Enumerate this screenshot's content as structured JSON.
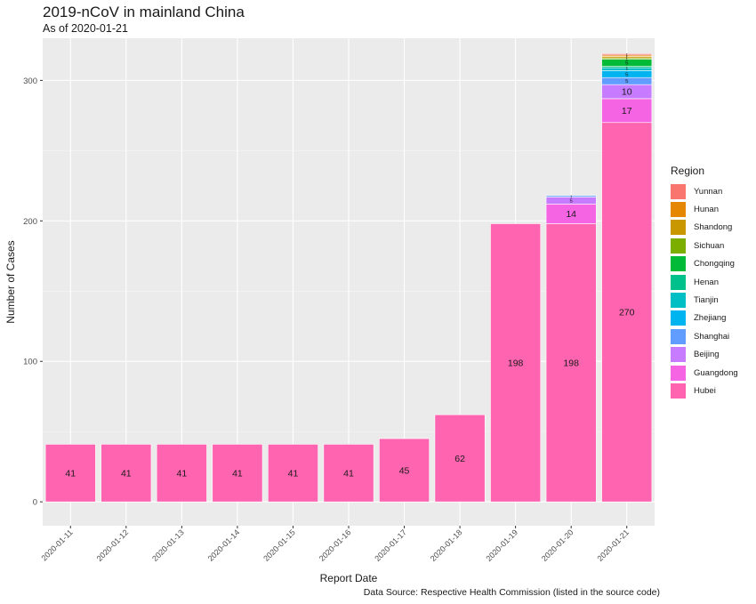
{
  "title": "2019-nCoV in mainland China",
  "subtitle": "As of 2020-01-21",
  "caption": "Data Source: Respective Health Commission (listed in the source code)",
  "colors": {
    "panel_bg": "#ebebeb",
    "grid_major": "#ffffff",
    "region_colors": {
      "Yunnan": "#F8766D",
      "Hunan": "#E58700",
      "Shandong": "#C99800",
      "Sichuan": "#7CAE00",
      "Chongqing": "#00BA38",
      "Henan": "#00C08B",
      "Tianjin": "#00BFC4",
      "Zhejiang": "#00B4F0",
      "Shanghai": "#619CFF",
      "Beijing": "#C77CFF",
      "Guangdong": "#F564E3",
      "Hubei": "#FF64B0"
    }
  },
  "chart_data": {
    "type": "bar",
    "stacked": true,
    "title": "2019-nCoV in mainland China",
    "subtitle": "As of 2020-01-21",
    "xlabel": "Report Date",
    "ylabel": "Number of Cases",
    "categories": [
      "2020-01-11",
      "2020-01-12",
      "2020-01-13",
      "2020-01-14",
      "2020-01-15",
      "2020-01-16",
      "2020-01-17",
      "2020-01-18",
      "2020-01-19",
      "2020-01-20",
      "2020-01-21"
    ],
    "ylim": [
      -17,
      330
    ],
    "yticks": [
      0,
      100,
      200,
      300
    ],
    "legend_title": "Region",
    "legend_position": "right",
    "series": [
      {
        "name": "Hubei",
        "values": [
          41,
          41,
          41,
          41,
          41,
          41,
          45,
          62,
          198,
          198,
          270
        ]
      },
      {
        "name": "Guangdong",
        "values": [
          0,
          0,
          0,
          0,
          0,
          0,
          0,
          0,
          0,
          14,
          17
        ]
      },
      {
        "name": "Beijing",
        "values": [
          0,
          0,
          0,
          0,
          0,
          0,
          0,
          0,
          0,
          5,
          10
        ]
      },
      {
        "name": "Shanghai",
        "values": [
          0,
          0,
          0,
          0,
          0,
          0,
          0,
          0,
          0,
          1,
          5
        ]
      },
      {
        "name": "Zhejiang",
        "values": [
          0,
          0,
          0,
          0,
          0,
          0,
          0,
          0,
          0,
          0,
          5
        ]
      },
      {
        "name": "Tianjin",
        "values": [
          0,
          0,
          0,
          0,
          0,
          0,
          0,
          0,
          0,
          0,
          2
        ]
      },
      {
        "name": "Henan",
        "values": [
          0,
          0,
          0,
          0,
          0,
          0,
          0,
          0,
          0,
          0,
          1
        ]
      },
      {
        "name": "Chongqing",
        "values": [
          0,
          0,
          0,
          0,
          0,
          0,
          0,
          0,
          0,
          0,
          5
        ]
      },
      {
        "name": "Sichuan",
        "values": [
          0,
          0,
          0,
          0,
          0,
          0,
          0,
          0,
          0,
          0,
          1
        ]
      },
      {
        "name": "Shandong",
        "values": [
          0,
          0,
          0,
          0,
          0,
          0,
          0,
          0,
          0,
          0,
          1
        ]
      },
      {
        "name": "Hunan",
        "values": [
          0,
          0,
          0,
          0,
          0,
          0,
          0,
          0,
          0,
          0,
          1
        ]
      },
      {
        "name": "Yunnan",
        "values": [
          0,
          0,
          0,
          0,
          0,
          0,
          0,
          0,
          0,
          0,
          1
        ]
      }
    ],
    "legend_order": [
      "Yunnan",
      "Hunan",
      "Shandong",
      "Sichuan",
      "Chongqing",
      "Henan",
      "Tianjin",
      "Zhejiang",
      "Shanghai",
      "Beijing",
      "Guangdong",
      "Hubei"
    ]
  }
}
